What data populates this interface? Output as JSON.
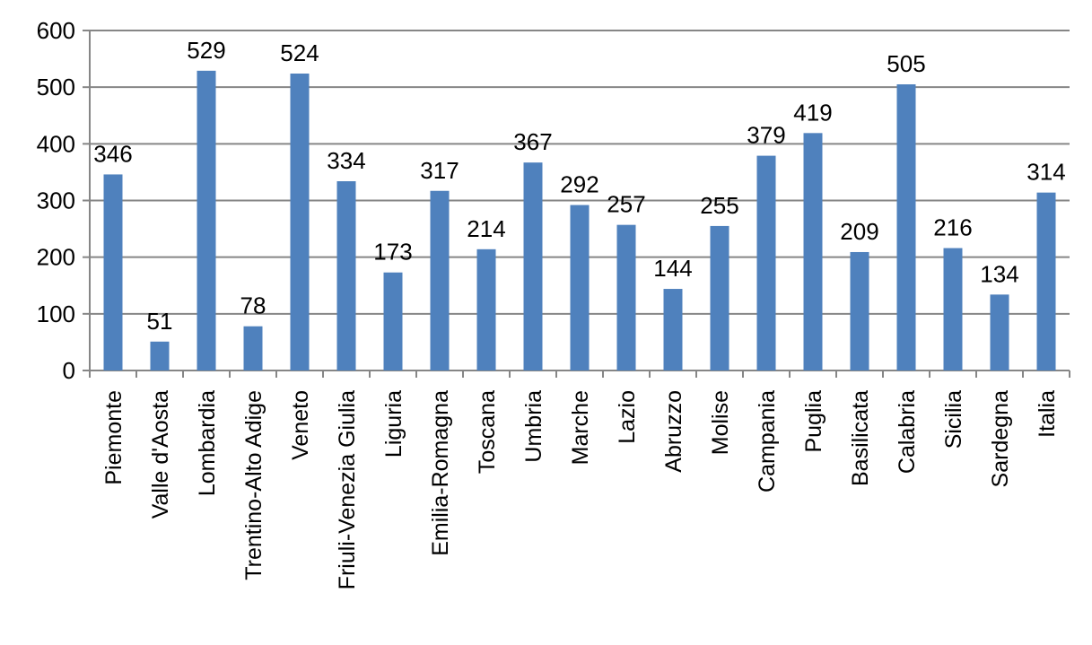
{
  "chart_data": {
    "type": "bar",
    "title": "",
    "xlabel": "",
    "ylabel": "",
    "ylim": [
      0,
      600
    ],
    "yticks": [
      0,
      100,
      200,
      300,
      400,
      500,
      600
    ],
    "grid": true,
    "legend": "none",
    "bar_color": "#4F81BD",
    "gridline_color": "#868686",
    "categories": [
      "Piemonte",
      "Valle d'Aosta",
      "Lombardia",
      "Trentino-Alto Adige",
      "Veneto",
      "Friuli-Venezia Giulia",
      "Liguria",
      "Emilia-Romagna",
      "Toscana",
      "Umbria",
      "Marche",
      "Lazio",
      "Abruzzo",
      "Molise",
      "Campania",
      "Puglia",
      "Basilicata",
      "Calabria",
      "Sicilia",
      "Sardegna",
      "Italia"
    ],
    "values": [
      346,
      51,
      529,
      78,
      524,
      334,
      173,
      317,
      214,
      367,
      292,
      257,
      144,
      255,
      379,
      419,
      209,
      505,
      216,
      134,
      314
    ]
  }
}
